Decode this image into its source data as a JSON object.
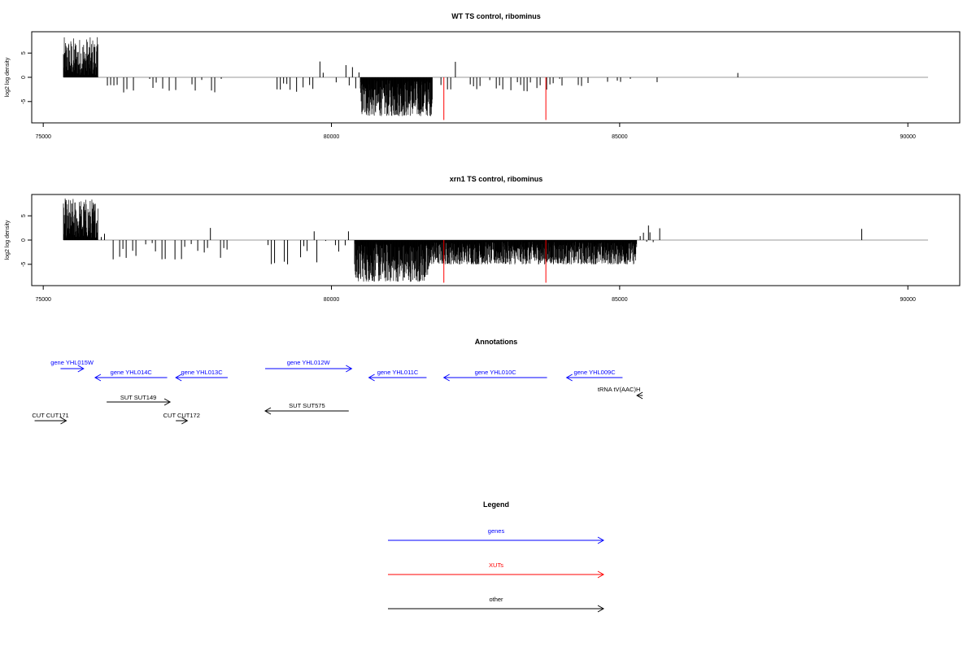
{
  "colors": {
    "genes": "#0000ff",
    "xuts": "#ff0000",
    "other": "#000000",
    "bars": "#000000",
    "baseline": "#999999"
  },
  "chart_data": [
    {
      "type": "bar",
      "title": "WT TS control, ribominus",
      "ylabel": "log2 log density",
      "xlim": [
        74800,
        90900
      ],
      "ylim": [
        -9.4,
        9.4
      ],
      "data_range": [
        75350,
        90350
      ],
      "xticks": [
        "75000",
        "80000",
        "85000",
        "90000"
      ],
      "xtick_values": [
        75000,
        80000,
        85000,
        90000
      ],
      "yticks": [
        "5",
        "0",
        "-5"
      ],
      "ytick_values": [
        5,
        0,
        -5
      ],
      "red_lines": [
        {
          "x": 81950,
          "y": -8.8
        },
        {
          "x": 83720,
          "y": -8.8
        }
      ],
      "segments": [
        {
          "from": 75350,
          "to": 75950,
          "min": 0.5,
          "max": 8.3,
          "dense": true
        },
        {
          "from": 75950,
          "to": 76000,
          "min": 0.5,
          "max": 3.5
        },
        {
          "from": 76000,
          "to": 78100,
          "min": -3.5,
          "max": -0.2
        },
        {
          "from": 79000,
          "to": 79800,
          "min": -3.0,
          "max": -0.3
        },
        {
          "from": 79800,
          "to": 80500,
          "min": -2.5,
          "max": 3.5
        },
        {
          "from": 80500,
          "to": 81750,
          "min": -8.0,
          "max": -0.5,
          "dense": true
        },
        {
          "from": 81900,
          "to": 83000,
          "min": -2.5,
          "max": -0.3
        },
        {
          "from": 83000,
          "to": 84000,
          "min": -3.0,
          "max": -0.3
        },
        {
          "from": 84000,
          "to": 85200,
          "min": -2.0,
          "max": -0.3
        }
      ],
      "spikes": [
        {
          "x": 82150,
          "y": 3.2
        },
        {
          "x": 87050,
          "y": 0.9
        },
        {
          "x": 85650,
          "y": -1.0
        }
      ]
    },
    {
      "type": "bar",
      "title": "xrn1 TS control, ribominus",
      "ylabel": "log2 log density",
      "xlim": [
        74800,
        90900
      ],
      "ylim": [
        -9.4,
        9.4
      ],
      "data_range": [
        75350,
        90350
      ],
      "xticks": [
        "75000",
        "80000",
        "85000",
        "90000"
      ],
      "xtick_values": [
        75000,
        80000,
        85000,
        90000
      ],
      "yticks": [
        "5",
        "0",
        "-5"
      ],
      "ytick_values": [
        5,
        0,
        -5
      ],
      "red_lines": [
        {
          "x": 81950,
          "y": -8.8
        },
        {
          "x": 83720,
          "y": -8.8
        }
      ],
      "segments": [
        {
          "from": 75350,
          "to": 75950,
          "min": 0.5,
          "max": 8.7,
          "dense": true
        },
        {
          "from": 75950,
          "to": 76100,
          "min": 0.5,
          "max": 3.5
        },
        {
          "from": 76100,
          "to": 78200,
          "min": -4.0,
          "max": -0.3
        },
        {
          "from": 78900,
          "to": 79900,
          "min": -5.0,
          "max": -0.3
        },
        {
          "from": 79900,
          "to": 80400,
          "min": -2.5,
          "max": 2.0
        },
        {
          "from": 80400,
          "to": 81700,
          "min": -8.6,
          "max": -0.5,
          "dense": true
        },
        {
          "from": 81700,
          "to": 85300,
          "min": -5.0,
          "max": -0.3,
          "dense": true
        },
        {
          "from": 85300,
          "to": 85700,
          "min": -3.0,
          "max": 3.0
        }
      ],
      "spikes": [
        {
          "x": 77900,
          "y": 2.5
        },
        {
          "x": 79700,
          "y": 1.8
        },
        {
          "x": 85500,
          "y": 3.0
        },
        {
          "x": 89200,
          "y": 2.3
        }
      ]
    }
  ],
  "annotations": {
    "title": "Annotations",
    "items": [
      {
        "label": "gene YHL015W",
        "kind": "genes",
        "from": 75300,
        "to": 75700,
        "dir": "right",
        "track": 0
      },
      {
        "label": "gene YHL014C",
        "kind": "genes",
        "from": 75900,
        "to": 77150,
        "dir": "left",
        "track": 1
      },
      {
        "label": "gene YHL013C",
        "kind": "genes",
        "from": 77300,
        "to": 78200,
        "dir": "left",
        "track": 1
      },
      {
        "label": "gene YHL012W",
        "kind": "genes",
        "from": 78850,
        "to": 80350,
        "dir": "right",
        "track": 0
      },
      {
        "label": "gene YHL011C",
        "kind": "genes",
        "from": 80650,
        "to": 81650,
        "dir": "left",
        "track": 1
      },
      {
        "label": "gene YHL010C",
        "kind": "genes",
        "from": 81950,
        "to": 83740,
        "dir": "left",
        "track": 1
      },
      {
        "label": "gene YHL009C",
        "kind": "genes",
        "from": 84080,
        "to": 85050,
        "dir": "left",
        "track": 1
      },
      {
        "label": "tRNA tV(AAC)H",
        "kind": "other",
        "from": 85300,
        "to": 85400,
        "dir": "left",
        "track": 2
      },
      {
        "label": "SUT SUT149",
        "kind": "other",
        "from": 76100,
        "to": 77200,
        "dir": "right",
        "track": 3
      },
      {
        "label": "SUT SUT575",
        "kind": "other",
        "from": 78850,
        "to": 80300,
        "dir": "left",
        "track": 4
      },
      {
        "label": "CUT CUT171",
        "kind": "other",
        "from": 74850,
        "to": 75400,
        "dir": "right",
        "track": 5
      },
      {
        "label": "CUT CUT172",
        "kind": "other",
        "from": 77300,
        "to": 77500,
        "dir": "right",
        "track": 5
      }
    ]
  },
  "legend": {
    "title": "Legend",
    "items": [
      {
        "label": "genes",
        "kind": "genes"
      },
      {
        "label": "XUTs",
        "kind": "xuts"
      },
      {
        "label": "other",
        "kind": "other"
      }
    ]
  }
}
